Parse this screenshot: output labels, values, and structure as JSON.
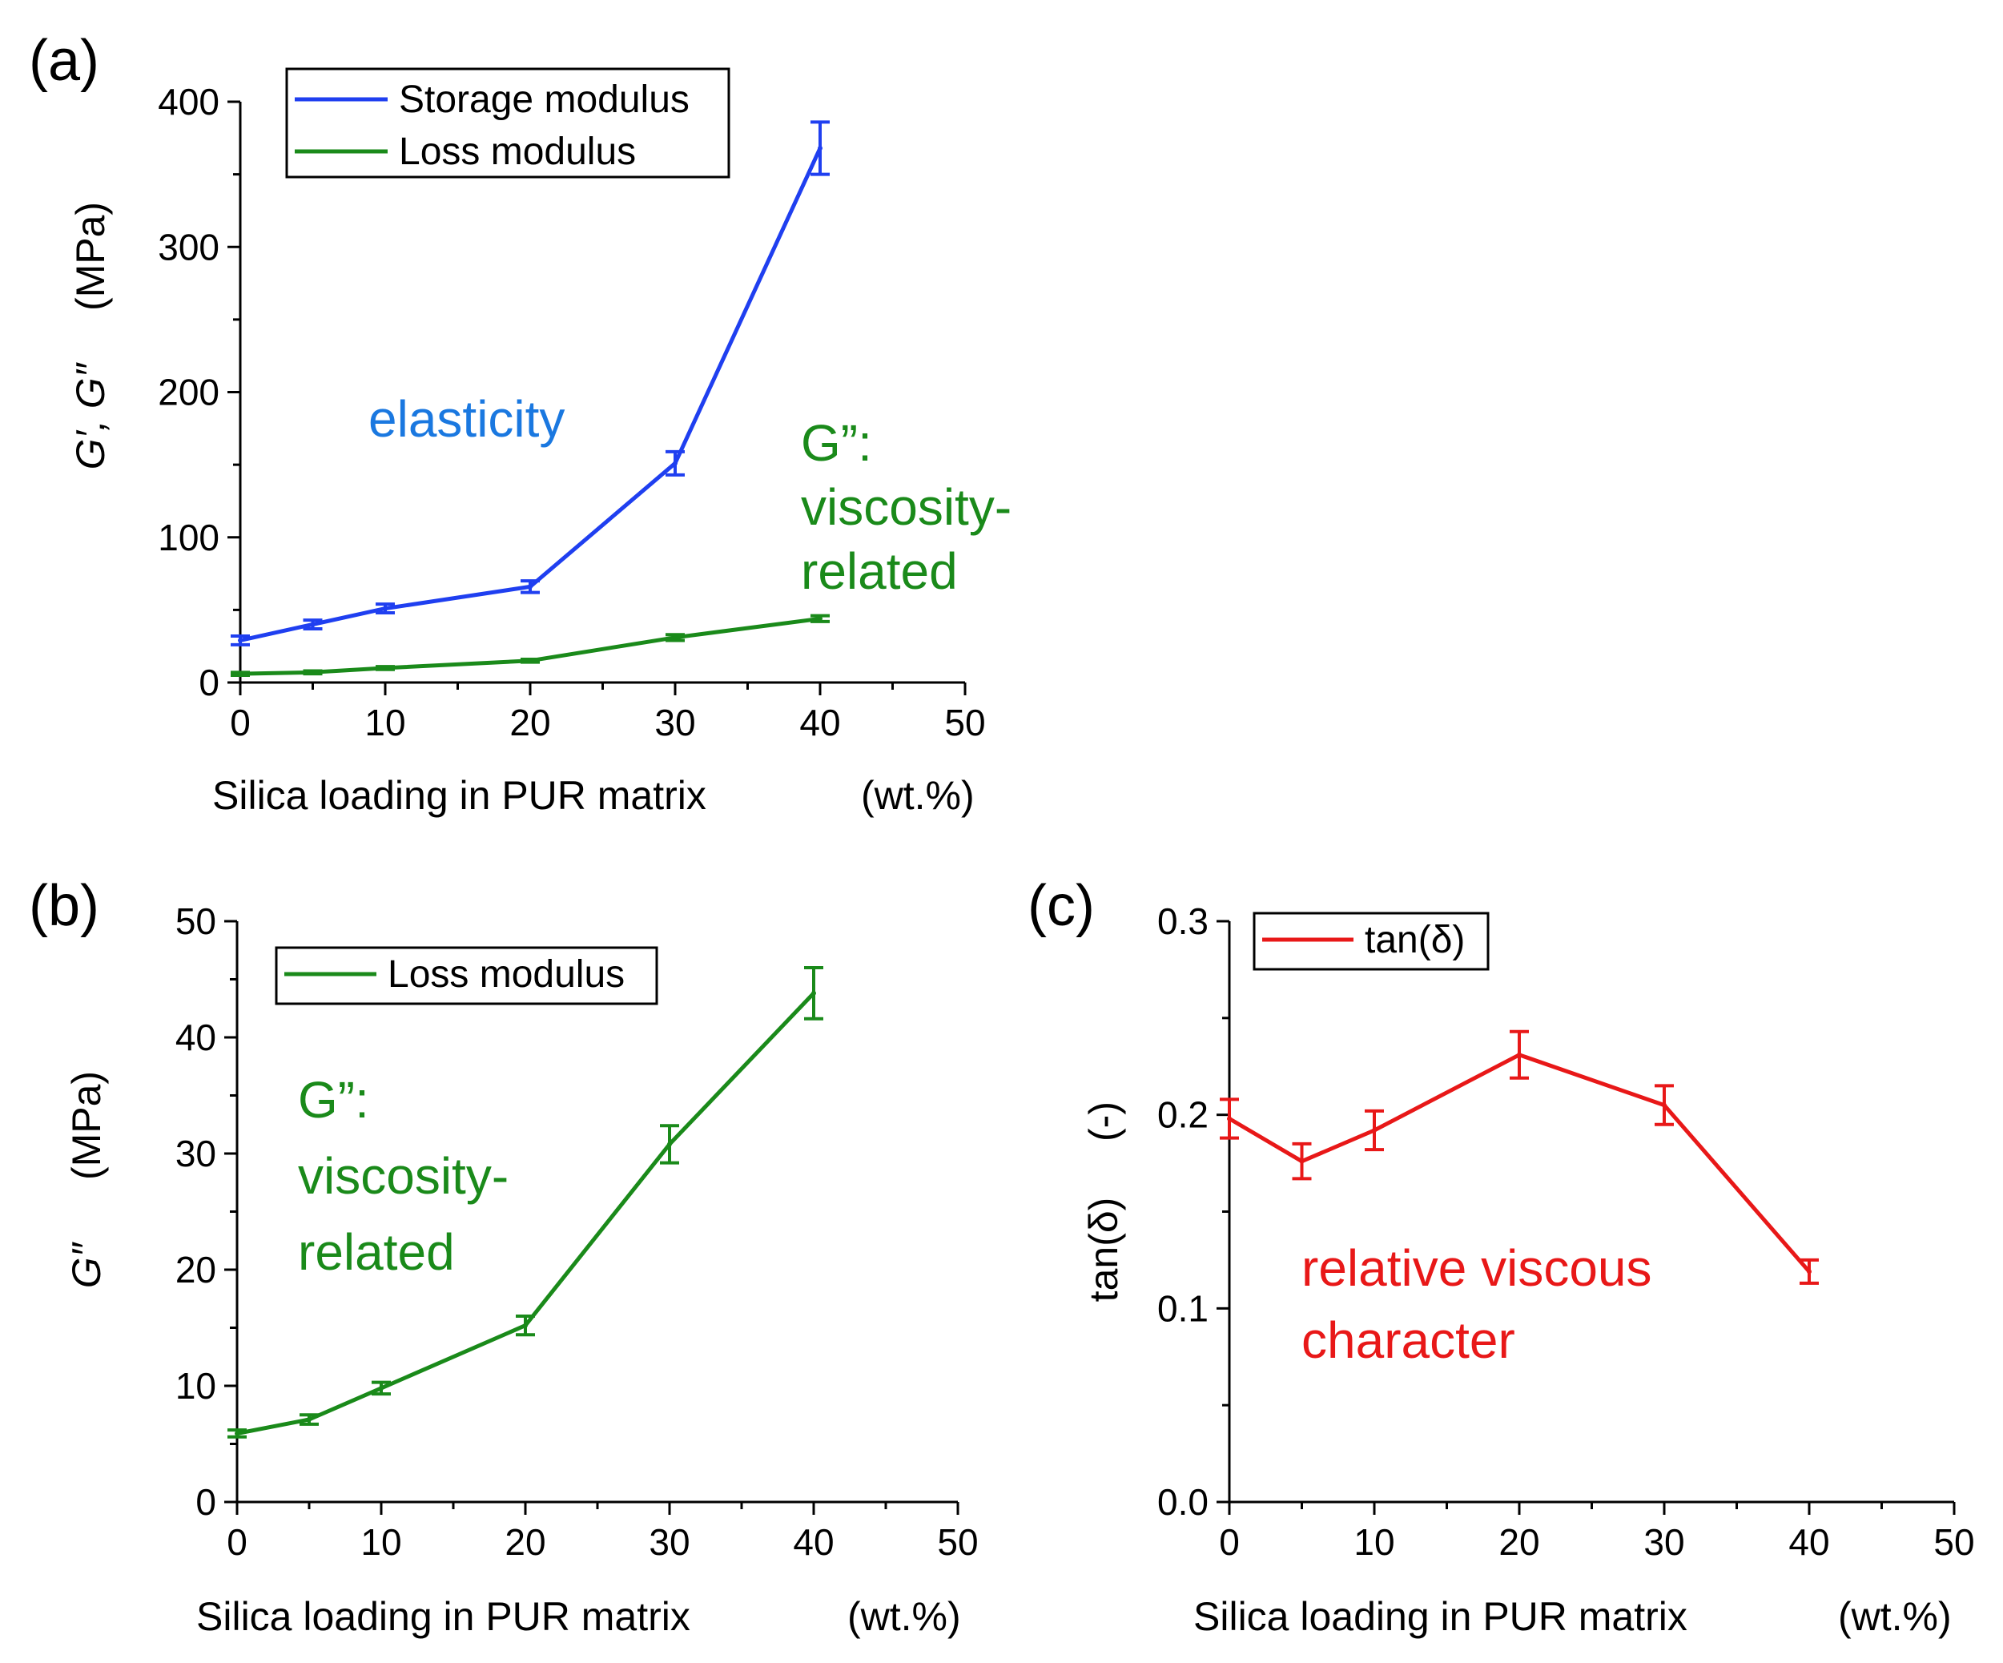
{
  "chart_data": [
    {
      "panel": "(a)",
      "type": "line",
      "xlabel": "Silica loading in PUR matrix",
      "xunit": "(wt.%)",
      "ylabel": "G′, G″",
      "yunit": "(MPa)",
      "xlim": [
        0,
        50
      ],
      "ylim": [
        0,
        400
      ],
      "xticks": [
        "0",
        "10",
        "20",
        "30",
        "40",
        "50"
      ],
      "yticks": [
        "0",
        "100",
        "200",
        "300",
        "400"
      ],
      "grid": false,
      "legend_position": "top-left",
      "series": [
        {
          "name": "Storage modulus",
          "color": "#1f3ff0",
          "x": [
            0,
            5,
            10,
            20,
            30,
            40
          ],
          "y": [
            29,
            40,
            51,
            66,
            151,
            368
          ],
          "err": [
            3,
            3,
            3,
            4,
            8,
            18
          ]
        },
        {
          "name": "Loss modulus",
          "color": "#1a8a1a",
          "x": [
            0,
            5,
            10,
            20,
            30,
            40
          ],
          "y": [
            6,
            7,
            10,
            15,
            31,
            44
          ],
          "err": [
            1,
            1,
            1,
            1,
            2,
            2
          ]
        }
      ],
      "annotations": [
        {
          "lines": [
            "elasticity"
          ],
          "color": "#1a78e0"
        },
        {
          "lines": [
            "G”:",
            "viscosity-",
            "related"
          ],
          "color": "#1a8a1a"
        }
      ]
    },
    {
      "panel": "(b)",
      "type": "line",
      "xlabel": "Silica loading in PUR matrix",
      "xunit": "(wt.%)",
      "ylabel": "G″",
      "yunit": "(MPa)",
      "xlim": [
        0,
        50
      ],
      "ylim": [
        0,
        50
      ],
      "xticks": [
        "0",
        "10",
        "20",
        "30",
        "40",
        "50"
      ],
      "yticks": [
        "0",
        "10",
        "20",
        "30",
        "40",
        "50"
      ],
      "grid": false,
      "legend_position": "top-left",
      "series": [
        {
          "name": "Loss modulus",
          "color": "#1a8a1a",
          "x": [
            0,
            5,
            10,
            20,
            30,
            40
          ],
          "y": [
            5.9,
            7.1,
            9.8,
            15.2,
            30.8,
            43.8
          ],
          "err": [
            0.3,
            0.4,
            0.5,
            0.8,
            1.6,
            2.2
          ]
        }
      ],
      "annotations": [
        {
          "lines": [
            "G”:",
            "viscosity-",
            "related"
          ],
          "color": "#1a8a1a"
        }
      ]
    },
    {
      "panel": "(c)",
      "type": "line",
      "xlabel": "Silica loading in PUR matrix",
      "xunit": "(wt.%)",
      "ylabel": "tan(δ)",
      "yunit": "(-)",
      "xlim": [
        0,
        50
      ],
      "ylim": [
        0,
        0.3
      ],
      "xticks": [
        "0",
        "10",
        "20",
        "30",
        "40",
        "50"
      ],
      "yticks": [
        "0.0",
        "0.1",
        "0.2",
        "0.3"
      ],
      "grid": false,
      "legend_position": "top-left",
      "series": [
        {
          "name": "tan(δ)",
          "color": "#e81818",
          "x": [
            0,
            5,
            10,
            20,
            30,
            40
          ],
          "y": [
            0.198,
            0.176,
            0.192,
            0.231,
            0.205,
            0.119
          ],
          "err": [
            0.01,
            0.009,
            0.01,
            0.012,
            0.01,
            0.006
          ]
        }
      ],
      "annotations": [
        {
          "lines": [
            "relative viscous",
            "character"
          ],
          "color": "#e81818"
        }
      ]
    }
  ]
}
